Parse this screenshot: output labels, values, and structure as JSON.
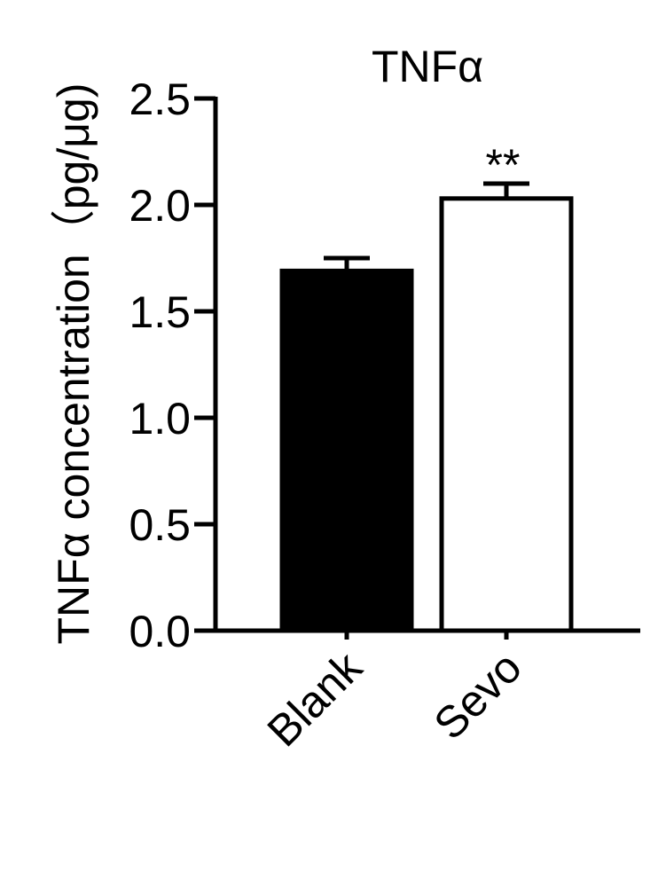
{
  "chart_data": {
    "type": "bar",
    "title": "TNFα",
    "y_label": "TNFα concentration（pg/μg)",
    "categories": [
      "Blank",
      "Sevo"
    ],
    "values": [
      1.69,
      2.03
    ],
    "errors": [
      0.06,
      0.07
    ],
    "colors": [
      "#000000",
      "#ffffff"
    ],
    "annotations": [
      {
        "category": 1,
        "text": "**"
      }
    ],
    "ylim": [
      0,
      2.5
    ],
    "yticks": [
      {
        "value": 0,
        "label": "0.0"
      },
      0.5,
      {
        "value": 1,
        "label": "1.0"
      },
      1.5,
      {
        "value": 2,
        "label": "2.0"
      },
      2.5
    ],
    "grid": false
  }
}
